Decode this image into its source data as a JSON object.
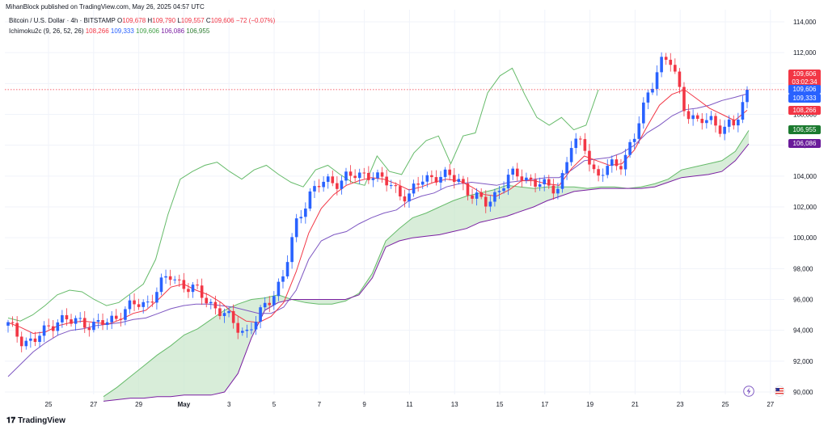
{
  "publish_line": "MihanBlock published on TradingView.com, May 26, 2025 04:57 UTC",
  "symbol": {
    "name": "Bitcoin / U.S. Dollar · 4h · BITSTAMP",
    "open_label": "O",
    "open": "109,678",
    "high_label": "H",
    "high": "109,790",
    "low_label": "L",
    "low": "109,557",
    "close_label": "C",
    "close": "109,606",
    "change": "−72 (−0.07%)"
  },
  "indicator": {
    "name": "Ichimoku2c (9, 26, 52, 26)",
    "tenkan": "108,266",
    "kijun": "109,333",
    "chikou": "109,606",
    "span_b": "106,086",
    "span_a": "106,955"
  },
  "price_tag": {
    "price": "109,606",
    "countdown": "03:02:34"
  },
  "axis_tags": {
    "chikou": "109,606",
    "kijun": "109,333",
    "tenkan": "108,266",
    "span_a": "106,955",
    "span_b": "106,086"
  },
  "brand": "TradingView",
  "colors": {
    "up": "#2962ff",
    "down": "#f23645",
    "tenkan": "#f23645",
    "kijun": "#7e57c2",
    "chikou": "#43a047",
    "cloud": "#c8e6c9",
    "cloud_edge_a": "#66bb6a",
    "cloud_edge_b": "#7b1fa2"
  },
  "chart_data": {
    "type": "candlestick",
    "title": "Bitcoin / U.S. Dollar · 4h · BITSTAMP",
    "ylim": [
      90000,
      114000
    ],
    "y_ticks": [
      "114,000",
      "112,000",
      "110,000",
      "108,000",
      "106,000",
      "104,000",
      "102,000",
      "100,000",
      "98,000",
      "96,000",
      "94,000",
      "92,000",
      "90,000"
    ],
    "x_ticks": [
      "25",
      "27",
      "29",
      "May",
      "3",
      "5",
      "7",
      "9",
      "11",
      "13",
      "15",
      "17",
      "19",
      "21",
      "23",
      "25",
      "27"
    ],
    "last_price": 109606,
    "series": [
      {
        "name": "Close (approx.)",
        "values": [
          94300,
          93500,
          93200,
          94000,
          94800,
          94500,
          94600,
          94300,
          94500,
          95200,
          95600,
          95700,
          96800,
          97500,
          97000,
          96500,
          95900,
          95200,
          94400,
          93900,
          94800,
          96200,
          97600,
          100800,
          102900,
          103500,
          103600,
          104000,
          103900,
          104300,
          103600,
          103100,
          102700,
          103700,
          104100,
          103900,
          103800,
          102800,
          102100,
          103000,
          103900,
          104100,
          103600,
          103200,
          103400,
          106000,
          106100,
          103800,
          104600,
          105000,
          106400,
          109200,
          111400,
          111300,
          108500,
          107300,
          107800,
          107100,
          107200,
          109606
        ]
      },
      {
        "name": "Tenkan (approx.)",
        "values": [
          94500,
          94200,
          93800,
          93900,
          94300,
          94500,
          94600,
          94500,
          94400,
          94700,
          95100,
          95300,
          96000,
          96800,
          97000,
          96600,
          96300,
          95800,
          95100,
          94600,
          94500,
          94900,
          95800,
          97800,
          100300,
          101900,
          102800,
          103400,
          103700,
          103900,
          103800,
          103500,
          103100,
          103300,
          103600,
          103800,
          103700,
          103300,
          102800,
          102700,
          103100,
          103700,
          103700,
          103500,
          103400,
          104500,
          105300,
          105000,
          104700,
          104800,
          105700,
          107200,
          108600,
          109300,
          109600,
          109000,
          108400,
          108000,
          107600,
          108266
        ]
      },
      {
        "name": "Kijun (approx.)",
        "values": [
          91000,
          91800,
          92600,
          93200,
          93700,
          94000,
          94100,
          94300,
          94400,
          94500,
          94700,
          94800,
          95100,
          95400,
          95600,
          95700,
          95700,
          95600,
          95500,
          95300,
          95100,
          95100,
          95500,
          96600,
          98600,
          99800,
          100200,
          100400,
          100900,
          101300,
          101600,
          101800,
          102400,
          102700,
          102900,
          103300,
          103500,
          103600,
          103500,
          103400,
          103600,
          103700,
          103800,
          103900,
          103900,
          104400,
          105000,
          105100,
          105200,
          105500,
          106000,
          106800,
          107300,
          107900,
          108300,
          108400,
          108600,
          108900,
          109100,
          109333
        ]
      },
      {
        "name": "Chikou (approx.)",
        "values": [
          94800,
          94600,
          95000,
          95600,
          96300,
          96600,
          96500,
          96000,
          95600,
          95800,
          96400,
          97000,
          98600,
          101500,
          103800,
          104300,
          104700,
          104900,
          104300,
          103800,
          104400,
          104700,
          104100,
          103600,
          103300,
          104400,
          104700,
          104100,
          103600,
          103400,
          105300,
          104300,
          104100,
          105500,
          106300,
          106600,
          104800,
          106600,
          106800,
          109400,
          110500,
          111000,
          109300,
          107800,
          107300,
          107800,
          107000,
          107300,
          109606
        ]
      },
      {
        "name": "Span A (approx.)",
        "values": [
          89700,
          90300,
          91000,
          91700,
          92400,
          93000,
          93700,
          94100,
          94700,
          95300,
          95700,
          96000,
          96100,
          96300,
          96000,
          95800,
          95700,
          95700,
          95900,
          96400,
          97700,
          99800,
          100600,
          101300,
          101600,
          102000,
          102400,
          102700,
          102900,
          103100,
          103400,
          103300,
          103200,
          103300,
          103300,
          103300,
          103200,
          103300,
          103300,
          103200,
          103300,
          103500,
          103800,
          104400,
          104600,
          104800,
          105000,
          105600,
          106955
        ]
      },
      {
        "name": "Span B (approx.)",
        "values": [
          89400,
          89500,
          89600,
          89600,
          89700,
          89700,
          89800,
          89800,
          89800,
          90000,
          91200,
          93500,
          95300,
          95800,
          96000,
          96000,
          96000,
          96000,
          96000,
          96300,
          97400,
          99400,
          99800,
          100000,
          100100,
          100200,
          100400,
          100600,
          101000,
          101200,
          101400,
          101700,
          102000,
          102400,
          102700,
          103000,
          103100,
          103200,
          103200,
          103200,
          103200,
          103300,
          103600,
          103900,
          104000,
          104100,
          104300,
          105000,
          106086
        ]
      }
    ]
  }
}
